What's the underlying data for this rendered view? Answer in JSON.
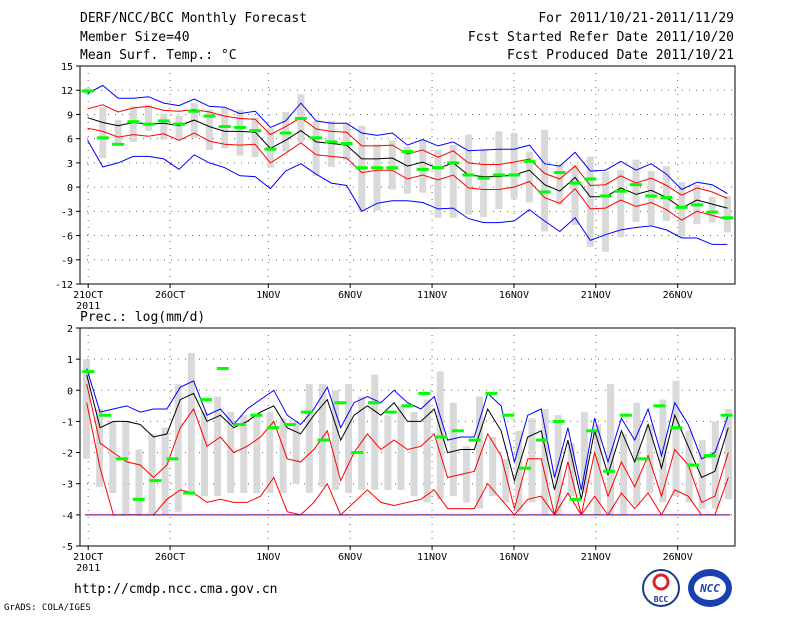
{
  "header": {
    "model": "DERF/NCC/BCC Monthly Forecast",
    "member_size": "Member Size=40",
    "variable": "Mean Surf. Temp.: °C",
    "forecast_period": "For 2011/10/21-2011/11/29",
    "start_date": "Fcst Started Refer Date 2011/10/20",
    "produced_date": "Fcst Produced Date 2011/10/21"
  },
  "footer": {
    "url": "http://cmdp.ncc.cma.gov.cn",
    "credit": "GrADS: COLA/IGES"
  },
  "logos": {
    "left": "BCC",
    "right": "NCC"
  },
  "colors": {
    "box": "#d9d9d9",
    "median": "#00ff00",
    "mean": "#000000",
    "inner": "#ff0000",
    "outer": "#0000ff"
  },
  "chart_data": [
    {
      "type": "line",
      "title": "Mean Surf. Temp.: °C",
      "x_tick_labels": [
        "21OCT",
        "26OCT",
        "1NOV",
        "6NOV",
        "11NOV",
        "16NOV",
        "21NOV",
        "26NOV"
      ],
      "x_tick_days": [
        1,
        6,
        12,
        17,
        22,
        27,
        32,
        37
      ],
      "year_label": "2011",
      "ylim": [
        -12,
        15
      ],
      "yticks": [
        -12,
        -9,
        -6,
        -3,
        0,
        3,
        6,
        9,
        12,
        15
      ],
      "days": 40,
      "series": [
        {
          "name": "mean",
          "values": [
            8.6,
            8.0,
            7.6,
            8.0,
            7.8,
            7.9,
            7.6,
            8.3,
            7.5,
            6.9,
            6.9,
            6.8,
            4.8,
            5.8,
            7.0,
            5.6,
            5.4,
            5.2,
            3.5,
            3.5,
            3.6,
            2.6,
            3.1,
            2.3,
            3.0,
            1.5,
            1.3,
            1.3,
            1.5,
            2.1,
            0.3,
            -0.5,
            1.2,
            -1.2,
            -1.2,
            -0.1,
            -0.9,
            -0.4,
            -1.3,
            -2.6,
            -1.6,
            -2.1,
            -2.6
          ]
        },
        {
          "name": "upper_inner",
          "values": [
            9.7,
            10.2,
            9.3,
            9.8,
            10.0,
            9.5,
            9.4,
            9.6,
            9.3,
            8.8,
            8.5,
            8.4,
            6.5,
            7.5,
            8.6,
            7.2,
            6.9,
            6.8,
            5.1,
            5.1,
            5.2,
            4.1,
            4.6,
            3.7,
            4.5,
            3.0,
            2.8,
            2.8,
            3.1,
            3.5,
            1.7,
            1.0,
            2.6,
            0.2,
            0.3,
            1.4,
            0.5,
            1.1,
            0.2,
            -1.0,
            -0.1,
            -0.6,
            -1.4
          ]
        },
        {
          "name": "lower_inner",
          "values": [
            7.3,
            6.9,
            6.2,
            6.5,
            6.3,
            6.6,
            5.8,
            6.7,
            5.7,
            5.3,
            5.2,
            5.3,
            3.0,
            4.2,
            5.5,
            4.0,
            3.8,
            3.6,
            1.8,
            2.1,
            2.1,
            1.0,
            1.5,
            0.9,
            1.5,
            -0.1,
            -0.3,
            -0.3,
            0.0,
            0.7,
            -1.3,
            -2.0,
            -0.2,
            -2.7,
            -2.6,
            -1.6,
            -2.4,
            -1.9,
            -2.8,
            -4.1,
            -3.0,
            -3.5,
            -4.0
          ]
        },
        {
          "name": "upper_outer",
          "values": [
            11.6,
            12.6,
            11.0,
            11.0,
            11.2,
            10.4,
            10.1,
            10.9,
            10.0,
            9.9,
            9.1,
            9.4,
            7.4,
            8.2,
            10.4,
            8.2,
            7.9,
            7.9,
            6.7,
            6.4,
            6.7,
            5.2,
            5.9,
            5.1,
            5.6,
            4.5,
            4.6,
            4.7,
            4.7,
            5.2,
            2.9,
            2.6,
            4.3,
            2.0,
            2.1,
            3.2,
            2.1,
            2.9,
            1.6,
            -0.3,
            0.6,
            0.3,
            -0.8
          ]
        },
        {
          "name": "lower_outer",
          "values": [
            5.8,
            2.5,
            3.0,
            3.8,
            3.8,
            3.5,
            2.2,
            4.0,
            3.0,
            2.4,
            1.4,
            1.3,
            -0.2,
            2.0,
            2.9,
            1.6,
            0.5,
            0.2,
            -3.0,
            -2.0,
            -1.7,
            -1.7,
            -1.9,
            -2.7,
            -2.6,
            -3.9,
            -4.4,
            -4.4,
            -4.2,
            -2.8,
            -4.2,
            -5.5,
            -3.8,
            -6.6,
            -5.9,
            -5.3,
            -5.0,
            -4.8,
            -5.3,
            -6.3,
            -6.3,
            -7.1,
            -7.1
          ]
        },
        {
          "name": "median",
          "values": [
            11.9,
            6.1,
            5.3,
            8.1,
            7.8,
            8.2,
            7.8,
            9.4,
            8.8,
            7.5,
            7.4,
            7.0,
            4.7,
            6.7,
            8.5,
            6.1,
            5.6,
            5.4,
            2.4,
            2.4,
            2.4,
            4.4,
            2.2,
            2.4,
            3.0,
            1.5,
            1.1,
            1.5,
            1.5,
            3.2,
            -0.6,
            1.8,
            0.5,
            1.0,
            -1.1,
            -0.5,
            0.3,
            -1.1,
            -1.3,
            -2.5,
            -2.2,
            -3.1,
            -3.8
          ]
        },
        {
          "name": "box_top",
          "values": [
            12.3,
            9.9,
            8.3,
            10.0,
            10.2,
            9.1,
            8.8,
            10.4,
            9.6,
            9.8,
            9.6,
            8.6,
            7.3,
            9.3,
            11.5,
            8.2,
            8.2,
            7.8,
            7.6,
            5.3,
            5.8,
            5.0,
            5.8,
            4.6,
            5.2,
            6.5,
            4.6,
            6.9,
            6.7,
            4.4,
            7.1,
            2.8,
            2.8,
            3.8,
            1.9,
            2.1,
            3.4,
            2.0,
            2.6,
            0.6,
            0.3,
            -1.2,
            -1.1
          ]
        },
        {
          "name": "box_bottom",
          "values": [
            11.5,
            3.6,
            5.3,
            5.6,
            7.0,
            5.9,
            5.9,
            6.1,
            4.6,
            4.8,
            3.9,
            3.7,
            2.4,
            4.4,
            5.6,
            1.4,
            2.5,
            3.3,
            -3.0,
            -2.9,
            -0.3,
            -0.8,
            -0.7,
            -3.8,
            -3.8,
            -3.4,
            -3.7,
            -2.7,
            -1.5,
            -1.9,
            -5.5,
            -2.2,
            -4.7,
            -7.4,
            -8.0,
            -6.2,
            -4.3,
            -4.7,
            -4.2,
            -6.2,
            -4.6,
            -4.4,
            -5.6
          ]
        }
      ]
    },
    {
      "type": "line",
      "title": "Prec.: log(mm/d)",
      "x_tick_labels": [
        "21OCT",
        "26OCT",
        "1NOV",
        "6NOV",
        "11NOV",
        "16NOV",
        "21NOV",
        "26NOV"
      ],
      "x_tick_days": [
        1,
        6,
        12,
        17,
        22,
        27,
        32,
        37
      ],
      "year_label": "2011",
      "ylim": [
        -5,
        2
      ],
      "yticks": [
        -5,
        -4,
        -3,
        -2,
        -1,
        0,
        1,
        2
      ],
      "days": 40,
      "series": [
        {
          "name": "mean",
          "values": [
            0.5,
            -1.2,
            -1.0,
            -1.0,
            -1.1,
            -1.5,
            -1.4,
            -0.3,
            -0.1,
            -1.0,
            -0.8,
            -1.2,
            -1.0,
            -0.7,
            -0.5,
            -1.2,
            -1.4,
            -0.8,
            -0.3,
            -1.6,
            -0.8,
            -0.5,
            -0.8,
            -0.4,
            -1.0,
            -1.0,
            -0.6,
            -2.0,
            -1.9,
            -1.9,
            -0.6,
            -1.3,
            -2.9,
            -1.5,
            -1.3,
            -3.2,
            -1.6,
            -3.5,
            -1.3,
            -2.7,
            -1.3,
            -2.3,
            -1.1,
            -2.5,
            -0.8,
            -1.8,
            -2.8,
            -2.6,
            -1.2
          ]
        },
        {
          "name": "upper_outer",
          "values": [
            0.7,
            -0.7,
            -0.6,
            -0.5,
            -0.7,
            -0.6,
            -0.6,
            0.1,
            0.3,
            -0.8,
            -0.6,
            -1.1,
            -0.6,
            -0.3,
            0.0,
            -0.8,
            -1.1,
            -0.6,
            0.1,
            -1.2,
            -0.4,
            -0.2,
            -0.4,
            0.0,
            -0.4,
            -0.6,
            -0.2,
            -1.6,
            -1.5,
            -1.5,
            -0.1,
            -0.5,
            -2.3,
            -0.8,
            -0.6,
            -2.8,
            -1.2,
            -3.2,
            -0.9,
            -2.3,
            -0.9,
            -1.6,
            -0.6,
            -2.1,
            -0.4,
            -1.1,
            -2.2,
            -2.0,
            -0.8
          ]
        },
        {
          "name": "inner",
          "values": [
            0.2,
            -1.7,
            -2.0,
            -2.3,
            -2.4,
            -2.8,
            -2.4,
            -1.2,
            -0.6,
            -1.8,
            -1.5,
            -2.0,
            -1.8,
            -1.5,
            -1.0,
            -2.2,
            -2.3,
            -1.9,
            -1.3,
            -2.9,
            -2.0,
            -1.4,
            -1.9,
            -1.6,
            -1.9,
            -1.8,
            -1.4,
            -2.8,
            -2.7,
            -2.6,
            -1.4,
            -2.1,
            -3.8,
            -2.2,
            -2.2,
            -4.0,
            -2.3,
            -4.0,
            -2.0,
            -3.4,
            -2.3,
            -3.1,
            -2.1,
            -3.4,
            -1.9,
            -2.4,
            -3.6,
            -3.4,
            -2.0
          ]
        },
        {
          "name": "lower_outer",
          "values": [
            -0.4,
            -2.5,
            -4.0,
            -4.0,
            -4.0,
            -4.0,
            -3.5,
            -3.2,
            -3.3,
            -3.6,
            -3.5,
            -3.6,
            -3.6,
            -3.4,
            -2.8,
            -3.9,
            -4.0,
            -3.6,
            -3.0,
            -4.0,
            -3.6,
            -3.2,
            -3.6,
            -3.7,
            -3.6,
            -3.5,
            -3.2,
            -3.8,
            -3.8,
            -3.8,
            -3.0,
            -3.5,
            -4.0,
            -3.5,
            -3.4,
            -4.0,
            -3.3,
            -4.0,
            -3.4,
            -4.0,
            -3.3,
            -3.8,
            -3.3,
            -4.0,
            -3.2,
            -3.4,
            -4.0,
            -4.0,
            -2.8
          ]
        },
        {
          "name": "median",
          "values": [
            0.6,
            -0.8,
            -2.2,
            -3.5,
            -2.9,
            -2.2,
            -3.3,
            -0.3,
            0.7,
            -1.1,
            -0.8,
            -1.2,
            -1.1,
            -0.7,
            -1.6,
            -0.4,
            -2.0,
            -0.4,
            -0.7,
            -0.5,
            -0.1,
            -1.5,
            -1.3,
            -1.6,
            -0.1,
            -0.8,
            -2.5,
            -1.6,
            -1.0,
            -3.5,
            -1.3,
            -2.6,
            -0.8,
            -2.2,
            -0.5,
            -1.2,
            -2.4,
            -2.1,
            -0.8
          ]
        },
        {
          "name": "box_top",
          "values": [
            1.0,
            -0.6,
            -1.0,
            -1.0,
            -1.9,
            -1.4,
            -1.2,
            0.2,
            1.2,
            -0.7,
            -0.2,
            -0.7,
            -0.8,
            -0.8,
            -0.7,
            -0.9,
            -1.0,
            0.2,
            0.2,
            0.0,
            0.2,
            -0.2,
            0.5,
            -0.8,
            -0.5,
            -0.7,
            -0.3,
            0.6,
            -0.4,
            -1.8,
            -0.2,
            -1.5,
            -2.2,
            -1.3,
            -0.9,
            -0.6,
            -0.8,
            -1.7,
            -0.7,
            -1.1,
            0.2,
            -1.4,
            -0.4,
            -1.1,
            -0.3,
            0.3,
            -1.3,
            -1.6,
            -1.0,
            -0.6
          ]
        },
        {
          "name": "box_bottom",
          "values": [
            -2.2,
            -3.1,
            -3.3,
            -4.0,
            -4.0,
            -4.0,
            -4.0,
            -3.9,
            -3.3,
            -3.4,
            -3.4,
            -3.3,
            -3.3,
            -3.3,
            -3.3,
            -3.3,
            -3.0,
            -3.3,
            -3.1,
            -3.2,
            -3.3,
            -3.2,
            -3.2,
            -3.2,
            -3.2,
            -3.4,
            -3.6,
            -3.5,
            -3.4,
            -3.6,
            -3.8,
            -3.4,
            -3.6,
            -3.9,
            -3.6,
            -4.0,
            -4.0,
            -3.4,
            -3.3,
            -4.0,
            -4.0,
            -4.0,
            -3.7,
            -3.3,
            -3.6,
            -3.4,
            -3.6,
            -3.8,
            -3.8,
            -3.5
          ]
        }
      ]
    }
  ]
}
